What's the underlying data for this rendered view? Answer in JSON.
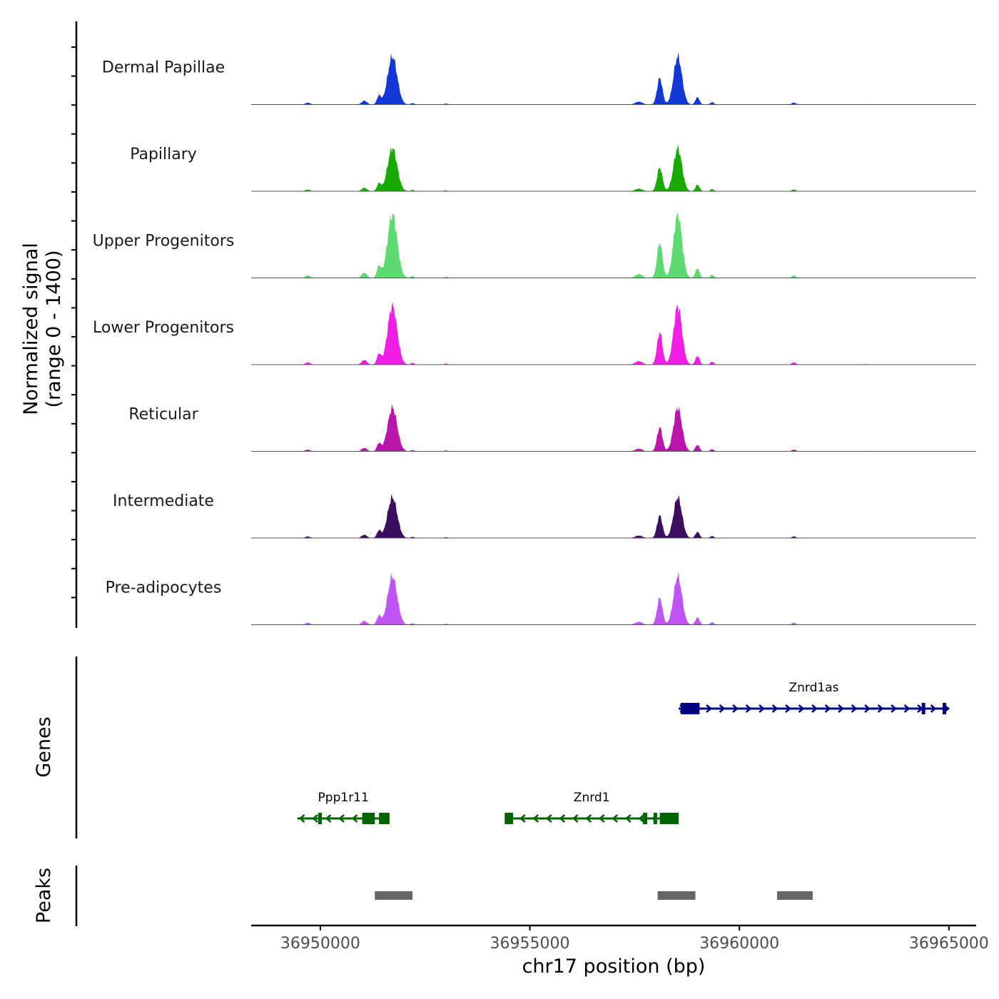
{
  "chart_data": {
    "type": "area",
    "title": "",
    "ylabel_line1": "Normalized signal",
    "ylabel_line2": "(range 0 - 1400)",
    "ylim": [
      0,
      1400
    ],
    "xlabel": "chr17 position (bp)",
    "xlim": [
      36948350,
      36965650
    ],
    "xticks": [
      36950000,
      36955000,
      36960000,
      36965000
    ],
    "xtick_labels": [
      "36950000",
      "36955000",
      "36960000",
      "36965000"
    ],
    "peak_shape": [
      {
        "center": 36949700,
        "width": 80,
        "frac": 0.04
      },
      {
        "center": 36951050,
        "width": 90,
        "frac": 0.08
      },
      {
        "center": 36951400,
        "width": 70,
        "frac": 0.18
      },
      {
        "center": 36951720,
        "width": 160,
        "frac": 1.0
      },
      {
        "center": 36952200,
        "width": 60,
        "frac": 0.03
      },
      {
        "center": 36953000,
        "width": 60,
        "frac": 0.02
      },
      {
        "center": 36957600,
        "width": 120,
        "frac": 0.06
      },
      {
        "center": 36958100,
        "width": 90,
        "frac": 0.55
      },
      {
        "center": 36958530,
        "width": 140,
        "frac": 1.0
      },
      {
        "center": 36959000,
        "width": 70,
        "frac": 0.15
      },
      {
        "center": 36959350,
        "width": 60,
        "frac": 0.05
      },
      {
        "center": 36961300,
        "width": 70,
        "frac": 0.04
      },
      {
        "center": 36963000,
        "width": 60,
        "frac": 0.01
      }
    ],
    "series": [
      {
        "name": "Dermal Papillae",
        "color": "#1338d8",
        "max": 1050
      },
      {
        "name": "Papillary",
        "color": "#18aa00",
        "max": 940
      },
      {
        "name": "Upper Progenitors",
        "color": "#5cdc70",
        "max": 1400
      },
      {
        "name": "Lower Progenitors",
        "color": "#f01ee6",
        "max": 1280
      },
      {
        "name": "Reticular",
        "color": "#b914ac",
        "max": 950
      },
      {
        "name": "Intermediate",
        "color": "#3a0d5e",
        "max": 890
      },
      {
        "name": "Pre-adipocytes",
        "color": "#c055f5",
        "max": 1060
      }
    ],
    "genes_label": "Genes",
    "genes": [
      {
        "name": "Znrd1as",
        "strand": "+",
        "color": "#000080",
        "start": 36958550,
        "end": 36965650,
        "exons": [
          [
            36958600,
            36959050
          ],
          [
            36964350,
            36964420
          ],
          [
            36964850,
            36964920
          ]
        ]
      },
      {
        "name": "Ppp1r11",
        "strand": "-",
        "color": "#006400",
        "start": 36949450,
        "end": 36951650,
        "exons": [
          [
            36949950,
            36950020
          ],
          [
            36951000,
            36951300
          ],
          [
            36951400,
            36951650
          ]
        ]
      },
      {
        "name": "Znrd1",
        "strand": "-",
        "color": "#006400",
        "start": 36954400,
        "end": 36958550,
        "exons": [
          [
            36954400,
            36954600
          ],
          [
            36957700,
            36957800
          ],
          [
            36957950,
            36958000
          ],
          [
            36958100,
            36958550
          ]
        ]
      }
    ],
    "peaks_label": "Peaks",
    "peaks": [
      [
        36951300,
        36952200
      ],
      [
        36958050,
        36958950
      ],
      [
        36960900,
        36961750
      ]
    ]
  }
}
